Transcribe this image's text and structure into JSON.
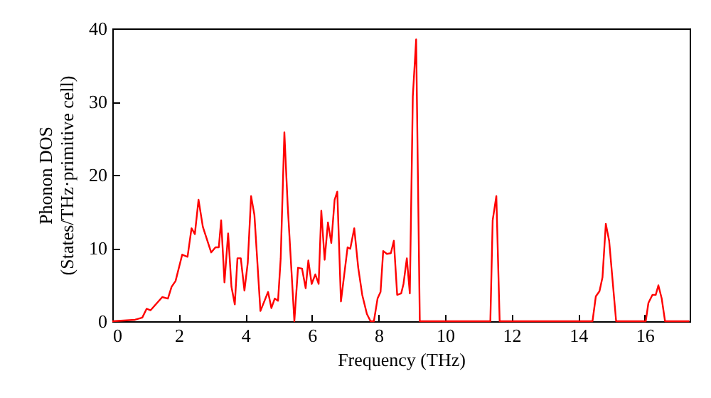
{
  "chart_data": {
    "type": "line",
    "xlabel": "Frequency (THz)",
    "ylabel": "Phonon DOS\n(States/THz·primitive cell)",
    "xlim": [
      0,
      17.35
    ],
    "xticks": [
      0,
      2,
      4,
      6,
      8,
      10,
      12,
      14,
      16
    ],
    "ylim": [
      0,
      40
    ],
    "yticks": [
      0,
      10,
      20,
      30,
      40
    ],
    "grid": false,
    "marker": "none",
    "line_style": "solid",
    "series": [
      {
        "color": "#ff0000",
        "x": [
          0,
          0.68,
          0.9,
          1.03,
          1.15,
          1.5,
          1.67,
          1.78,
          1.9,
          2.1,
          2.26,
          2.38,
          2.48,
          2.59,
          2.72,
          2.97,
          3.1,
          3.2,
          3.27,
          3.37,
          3.48,
          3.58,
          3.68,
          3.76,
          3.86,
          3.97,
          4.07,
          4.17,
          4.27,
          4.45,
          4.68,
          4.78,
          4.88,
          4.98,
          5.06,
          5.17,
          5.27,
          5.47,
          5.58,
          5.7,
          5.81,
          5.89,
          5.99,
          6.1,
          6.2,
          6.28,
          6.38,
          6.48,
          6.58,
          6.68,
          6.76,
          6.87,
          7.07,
          7.15,
          7.27,
          7.39,
          7.51,
          7.65,
          7.76,
          7.86,
          7.97,
          8.06,
          8.14,
          8.25,
          8.37,
          8.46,
          8.56,
          8.68,
          8.75,
          8.85,
          8.94,
          9.03,
          9.13,
          9.24,
          11.36,
          11.43,
          11.54,
          11.64,
          14.43,
          14.53,
          14.64,
          14.73,
          14.83,
          14.93,
          15.14,
          16.03,
          16.11,
          16.23,
          16.33,
          16.41,
          16.51,
          16.61,
          17.34
        ],
        "values": [
          0,
          0.2,
          0.5,
          1.7,
          1.5,
          3.3,
          3.1,
          4.7,
          5.5,
          9.1,
          8.8,
          12.7,
          11.9,
          16.6,
          12.9,
          9.4,
          10.1,
          10.1,
          13.8,
          5.3,
          12,
          4.7,
          2.3,
          8.6,
          8.6,
          4.2,
          8,
          17.1,
          14.5,
          1.4,
          4,
          1.8,
          3.1,
          2.8,
          8.6,
          25.8,
          15.8,
          0,
          7.3,
          7.2,
          4.5,
          8.3,
          5.1,
          6.4,
          5.1,
          15.1,
          8.4,
          13.5,
          10.7,
          16.6,
          17.7,
          2.7,
          10.1,
          9.9,
          12.7,
          7.3,
          3.6,
          1,
          0,
          0,
          3.1,
          4,
          9.6,
          9.2,
          9.3,
          11,
          3.6,
          3.8,
          5.1,
          8.6,
          3.8,
          30.7,
          38.5,
          0,
          0,
          13.8,
          17.1,
          0,
          0,
          3.4,
          4.1,
          6,
          13.3,
          11,
          0,
          0,
          2.5,
          3.6,
          3.6,
          4.9,
          3.1,
          0,
          0
        ]
      }
    ]
  }
}
